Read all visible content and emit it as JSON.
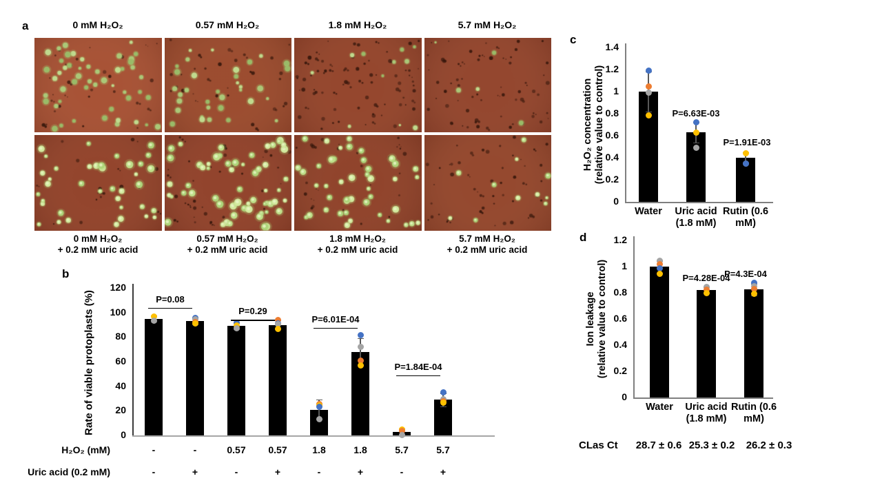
{
  "panel_letters": {
    "a": "a",
    "b": "b",
    "c": "c",
    "d": "d"
  },
  "point_colors": {
    "blue": "#4472C4",
    "orange": "#ED7D31",
    "gray": "#A5A5A5",
    "yellow": "#FFC000"
  },
  "panel_a": {
    "col_labels": [
      "0 mM H₂O₂",
      "0.57 mM H₂O₂",
      "1.8 mM H₂O₂",
      "5.7 mM H₂O₂"
    ],
    "bottom_labels": [
      {
        "line1": "0 mM H₂O₂",
        "line2": "+ 0.2 mM uric acid"
      },
      {
        "line1": "0.57 mM H₂O₂",
        "line2": "+ 0.2 mM uric acid"
      },
      {
        "line1": "1.8 mM H₂O₂",
        "line2": "+ 0.2 mM uric acid"
      },
      {
        "line1": "5.7 mM H₂O₂",
        "line2": "+ 0.2 mM uric acid"
      }
    ],
    "micrographs": [
      {
        "name": "micrograph-0mM",
        "bg": "#a34b2f",
        "green": 50,
        "dark": 28,
        "rmin": 2,
        "rmax": 4.5,
        "bright": false,
        "seed": 11
      },
      {
        "name": "micrograph-0.57mM",
        "bg": "#964428",
        "green": 34,
        "dark": 32,
        "rmin": 2,
        "rmax": 4.5,
        "bright": false,
        "seed": 22
      },
      {
        "name": "micrograph-1.8mM",
        "bg": "#8f3e26",
        "green": 11,
        "dark": 75,
        "rmin": 1.5,
        "rmax": 3.5,
        "bright": false,
        "seed": 33
      },
      {
        "name": "micrograph-5.7mM",
        "bg": "#8e3e27",
        "green": 5,
        "dark": 65,
        "rmin": 1.5,
        "rmax": 3.5,
        "bright": false,
        "seed": 44
      },
      {
        "name": "micrograph-0mM-uric-acid",
        "bg": "#8d3c25",
        "green": 38,
        "dark": 18,
        "rmin": 2.5,
        "rmax": 5.5,
        "bright": true,
        "seed": 55
      },
      {
        "name": "micrograph-0.57mM-uric-acid",
        "bg": "#8c3b25",
        "green": 58,
        "dark": 40,
        "rmin": 2.5,
        "rmax": 5.5,
        "bright": true,
        "seed": 66
      },
      {
        "name": "micrograph-1.8mM-uric-acid",
        "bg": "#8a3b24",
        "green": 44,
        "dark": 28,
        "rmin": 2.5,
        "rmax": 5,
        "bright": true,
        "seed": 77
      },
      {
        "name": "micrograph-5.7mM-uric-acid",
        "bg": "#8f4027",
        "green": 11,
        "dark": 50,
        "rmin": 2,
        "rmax": 4,
        "bright": true,
        "seed": 88
      }
    ]
  },
  "chart_data": [
    {
      "id": "b",
      "type": "bar",
      "ylabel": "Rate of viable protoplasts (%)",
      "ylim": [
        0,
        120
      ],
      "yticks": [
        0,
        20,
        40,
        60,
        80,
        100,
        120
      ],
      "bar_color": "#000000",
      "categories": [
        "0mM -UA",
        "0mM +UA",
        "0.57mM -UA",
        "0.57mM +UA",
        "1.8mM -UA",
        "1.8mM +UA",
        "5.7mM -UA",
        "5.7mM +UA"
      ],
      "values": [
        95,
        93,
        89,
        90,
        21,
        68,
        3,
        29
      ],
      "errors": [
        2.5,
        2.5,
        2.5,
        3.5,
        8,
        11,
        2.5,
        5.5
      ],
      "points": [
        [
          {
            "c": "yellow",
            "v": 97
          },
          {
            "c": "gray",
            "v": 93.5
          }
        ],
        [
          {
            "c": "blue",
            "v": 95.5
          },
          {
            "c": "gray",
            "v": 94.5
          },
          {
            "c": "orange",
            "v": 92
          },
          {
            "c": "yellow",
            "v": 91
          }
        ],
        [
          {
            "c": "blue",
            "v": 91.5
          },
          {
            "c": "yellow",
            "v": 89.5
          },
          {
            "c": "gray",
            "v": 87
          }
        ],
        [
          {
            "c": "orange",
            "v": 94
          },
          {
            "c": "blue",
            "v": 91
          },
          {
            "c": "gray",
            "v": 90.5
          },
          {
            "c": "yellow",
            "v": 86.5
          }
        ],
        [
          {
            "c": "orange",
            "v": 25.5
          },
          {
            "c": "yellow",
            "v": 24.5
          },
          {
            "c": "blue",
            "v": 23
          },
          {
            "c": "gray",
            "v": 13
          }
        ],
        [
          {
            "c": "blue",
            "v": 81.5
          },
          {
            "c": "gray",
            "v": 72
          },
          {
            "c": "orange",
            "v": 61
          },
          {
            "c": "yellow",
            "v": 57
          }
        ],
        [
          {
            "c": "yellow",
            "v": 5
          },
          {
            "c": "orange",
            "v": 3.5
          },
          {
            "c": "gray",
            "v": 0.5
          }
        ],
        [
          {
            "c": "blue",
            "v": 35
          },
          {
            "c": "gray",
            "v": 29.5
          },
          {
            "c": "orange",
            "v": 28
          },
          {
            "c": "yellow",
            "v": 26.5
          }
        ]
      ],
      "p_annotations": [
        {
          "label": "P=0.08",
          "from": 0,
          "to": 1,
          "line_y": 104
        },
        {
          "label": "P=0.29",
          "from": 2,
          "to": 3,
          "line_y": 94
        },
        {
          "label": "P=6.01E-04",
          "from": 4,
          "to": 5,
          "line_y": 87.5
        },
        {
          "label": "P=1.84E-04",
          "from": 6,
          "to": 7,
          "line_y": 49
        }
      ],
      "x_rows": [
        {
          "label": "H₂O₂ (mM)",
          "values": [
            "-",
            "-",
            "0.57",
            "0.57",
            "1.8",
            "1.8",
            "5.7",
            "5.7"
          ]
        },
        {
          "label": "Uric acid (0.2 mM)",
          "values": [
            "-",
            "+",
            "-",
            "+",
            "-",
            "+",
            "-",
            "+"
          ]
        }
      ]
    },
    {
      "id": "c",
      "type": "bar",
      "ylabel_line1": "H₂O₂ concentration",
      "ylabel_line2": "(relative value to control)",
      "ylim": [
        0,
        1.4
      ],
      "yticks": [
        0,
        0.2,
        0.4,
        0.6,
        0.8,
        1,
        1.2,
        1.4
      ],
      "bar_color": "#000000",
      "categories": [
        "Water\n",
        "Uric acid\n(1.8 mM)",
        "Rutin (0.6\nmM)"
      ],
      "values": [
        1.0,
        0.63,
        0.4
      ],
      "errors": [
        0.18,
        0.09,
        0.05
      ],
      "points": [
        [
          {
            "c": "blue",
            "v": 1.19
          },
          {
            "c": "orange",
            "v": 1.05
          },
          {
            "c": "gray",
            "v": 0.99
          },
          {
            "c": "yellow",
            "v": 0.785
          }
        ],
        [
          {
            "c": "blue",
            "v": 0.72
          },
          {
            "c": "yellow",
            "v": 0.63
          },
          {
            "c": "gray",
            "v": 0.49
          }
        ],
        [
          {
            "c": "yellow",
            "v": 0.44
          },
          {
            "c": "gray",
            "v": 0.35
          },
          {
            "c": "blue",
            "v": 0.345
          }
        ]
      ],
      "p_annotations": [
        {
          "label": "P=6.63E-03",
          "cat": 1,
          "y": 0.75,
          "dx": 0
        },
        {
          "label": "P=1.91E-03",
          "cat": 2,
          "y": 0.49,
          "dx": 2
        }
      ]
    },
    {
      "id": "d",
      "type": "bar",
      "ylabel_line1": "Ion leakage",
      "ylabel_line2": "(relative value to control)",
      "ylim": [
        0,
        1.2
      ],
      "yticks": [
        0,
        0.2,
        0.4,
        0.6,
        0.8,
        1,
        1.2
      ],
      "bar_color": "#000000",
      "categories": [
        "Water\n",
        "Uric acid\n(1.8 mM)",
        "Rutin (0.6\nmM)"
      ],
      "values": [
        1.0,
        0.82,
        0.825
      ],
      "errors": [
        0.045,
        0.025,
        0.045
      ],
      "points": [
        [
          {
            "c": "gray",
            "v": 1.045
          },
          {
            "c": "orange",
            "v": 1.02
          },
          {
            "c": "blue",
            "v": 0.985
          },
          {
            "c": "yellow",
            "v": 0.945
          }
        ],
        [
          {
            "c": "gray",
            "v": 0.845
          },
          {
            "c": "orange",
            "v": 0.825
          },
          {
            "c": "yellow",
            "v": 0.8
          }
        ],
        [
          {
            "c": "blue",
            "v": 0.875
          },
          {
            "c": "gray",
            "v": 0.85
          },
          {
            "c": "orange",
            "v": 0.83
          },
          {
            "c": "yellow",
            "v": 0.79
          }
        ]
      ],
      "p_annotations": [
        {
          "label": "P=4.28E-04",
          "cat": 1,
          "y": 0.87,
          "dx": 0
        },
        {
          "label": "P=4.3E-04",
          "cat": 2,
          "y": 0.9,
          "dx": -12
        }
      ],
      "footer_row": {
        "label": "CLas Ct",
        "values": [
          "28.7 ± 0.6",
          "25.3 ± 0.2",
          "26.2 ± 0.3"
        ]
      }
    }
  ]
}
